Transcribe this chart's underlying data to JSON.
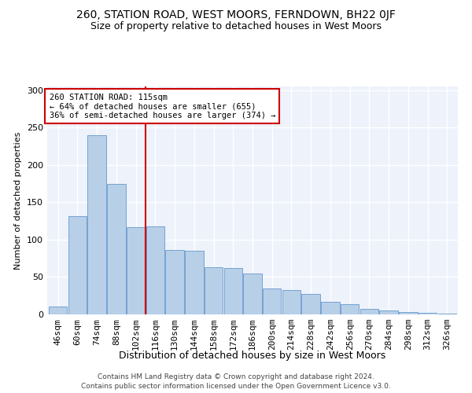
{
  "title": "260, STATION ROAD, WEST MOORS, FERNDOWN, BH22 0JF",
  "subtitle": "Size of property relative to detached houses in West Moors",
  "xlabel": "Distribution of detached houses by size in West Moors",
  "ylabel": "Number of detached properties",
  "categories": [
    "46sqm",
    "60sqm",
    "74sqm",
    "88sqm",
    "102sqm",
    "116sqm",
    "130sqm",
    "144sqm",
    "158sqm",
    "172sqm",
    "186sqm",
    "200sqm",
    "214sqm",
    "228sqm",
    "242sqm",
    "256sqm",
    "270sqm",
    "284sqm",
    "298sqm",
    "312sqm",
    "326sqm"
  ],
  "values": [
    11,
    131,
    240,
    175,
    117,
    118,
    86,
    85,
    63,
    62,
    55,
    35,
    33,
    27,
    17,
    14,
    7,
    5,
    3,
    2,
    1
  ],
  "bar_color": "#b8cfe8",
  "bar_edge_color": "#6699cc",
  "vline_color": "#cc0000",
  "annotation_line1": "260 STATION ROAD: 115sqm",
  "annotation_line2": "← 64% of detached houses are smaller (655)",
  "annotation_line3": "36% of semi-detached houses are larger (374) →",
  "annotation_box_color": "#ffffff",
  "annotation_box_edge": "#cc0000",
  "ylim": [
    0,
    305
  ],
  "yticks": [
    0,
    50,
    100,
    150,
    200,
    250,
    300
  ],
  "background_color": "#eef2fb",
  "grid_color": "#ffffff",
  "footer1": "Contains HM Land Registry data © Crown copyright and database right 2024.",
  "footer2": "Contains public sector information licensed under the Open Government Licence v3.0."
}
